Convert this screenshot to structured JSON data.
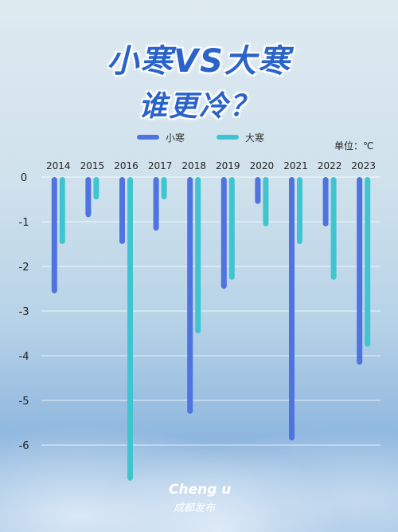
{
  "title_line1": "小寒VS大寒",
  "title_line2": "谁更冷？",
  "unit": "单位：℃",
  "logo": {
    "line1": "Cheng  u",
    "line2": "成都发布"
  },
  "colors": {
    "xiaohan": "#4f73df",
    "dahan": "#3fc5cf"
  },
  "chart_data": {
    "type": "bar",
    "categories": [
      "2014",
      "2015",
      "2016",
      "2017",
      "2018",
      "2019",
      "2020",
      "2021",
      "2022",
      "2023"
    ],
    "series": [
      {
        "name": "小寒",
        "values": [
          -2.6,
          -0.9,
          -1.5,
          -1.2,
          -5.3,
          -2.5,
          -0.6,
          -5.9,
          -1.1,
          -4.2
        ]
      },
      {
        "name": "大寒",
        "values": [
          -1.5,
          -0.5,
          -6.8,
          -0.5,
          -3.5,
          -2.3,
          -1.1,
          -1.5,
          -2.3,
          -3.8
        ]
      }
    ],
    "ylim": [
      -6.8,
      0
    ],
    "yticks": [
      0,
      -1,
      -2,
      -3,
      -4,
      -5,
      -6
    ],
    "grid": true,
    "legend": "top-center"
  }
}
